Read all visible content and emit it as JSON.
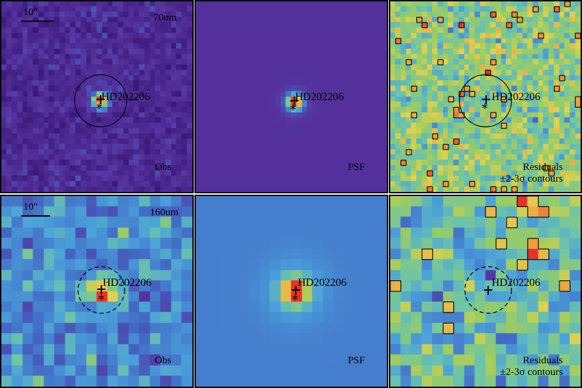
{
  "figure": {
    "target_name": "HD202206",
    "scale_bar_label": "10\"",
    "rows": [
      {
        "band": "70um",
        "obs_label": "Obs",
        "psf_label": "PSF",
        "residual_label_line1": "Residuals",
        "residual_label_line2": "±2-3σ contours",
        "aperture_style": "solid"
      },
      {
        "band": "160um",
        "obs_label": "Obs",
        "psf_label": "PSF",
        "residual_label_line1": "Residuals",
        "residual_label_line2": "±2-3σ contours",
        "aperture_style": "dashed"
      }
    ]
  },
  "colors": {
    "obs70_background": "#5a3ea0",
    "psf70_background": "#5b36a0",
    "peak": "#e83a2a",
    "residual_mid": "#9cc860",
    "obs160_background": "#5aa8d8",
    "psf160_background": "#4e86c8"
  },
  "icons": [
    "plus-marker-icon",
    "star-marker-icon",
    "aperture-circle-icon"
  ]
}
